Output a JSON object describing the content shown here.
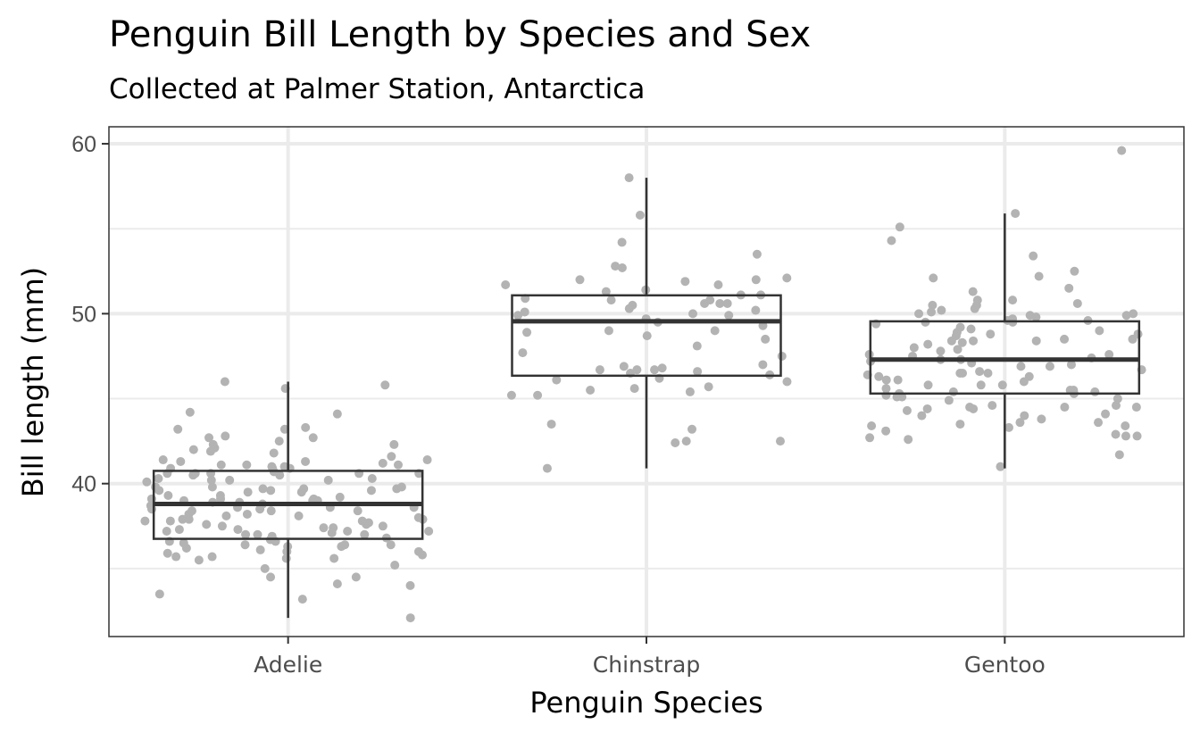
{
  "chart_data": {
    "type": "boxplot",
    "title": "Penguin Bill Length by Species and Sex",
    "subtitle": "Collected at Palmer Station, Antarctica",
    "xlabel": "Penguin Species",
    "ylabel": "Bill length (mm)",
    "ylim": [
      31,
      61
    ],
    "yticks": [
      40,
      50,
      60
    ],
    "ytick_labels": [
      "40",
      "50",
      "60"
    ],
    "grid": true,
    "categories": [
      "Adelie",
      "Chinstrap",
      "Gentoo"
    ],
    "boxes": [
      {
        "category": "Adelie",
        "min": 32.1,
        "q1": 36.75,
        "median": 38.8,
        "q3": 40.75,
        "max": 46.0
      },
      {
        "category": "Chinstrap",
        "min": 40.9,
        "q1": 46.35,
        "median": 49.55,
        "q3": 51.08,
        "max": 58.0
      },
      {
        "category": "Gentoo",
        "min": 40.9,
        "q1": 45.3,
        "median": 47.3,
        "q3": 49.55,
        "max": 55.9
      }
    ],
    "points": [
      {
        "category": "Adelie",
        "values": [
          45.6,
          43.3,
          43.2,
          42.1,
          41.0,
          40.9,
          40.6,
          39.7,
          39.1,
          38.8,
          38.1,
          37.7,
          37.4,
          37.2,
          36.3,
          35.7,
          34.1,
          44.2,
          41.3,
          41.0,
          40.6,
          39.6,
          38.6,
          37.9,
          37.3,
          36.9,
          36.0,
          35.5,
          35.0,
          33.2,
          44.1,
          42.8,
          42.0,
          41.4,
          40.9,
          40.2,
          39.5,
          38.9,
          38.2,
          37.6,
          37.0,
          36.4,
          35.9,
          34.0,
          42.3,
          41.1,
          40.5,
          39.8,
          39.0,
          38.5,
          37.8,
          37.1,
          36.5,
          42.7,
          41.8,
          40.9,
          40.3,
          39.7,
          39.2,
          38.6,
          38.0,
          37.3,
          36.7,
          36.0,
          34.5,
          45.8,
          40.7,
          39.6,
          39.3,
          38.9,
          38.4,
          37.9,
          37.5,
          37.0,
          36.4,
          35.8,
          32.1,
          41.6,
          40.6,
          40.2,
          39.7,
          39.1,
          38.6,
          38.2,
          37.6,
          37.0,
          36.3,
          34.5,
          41.1,
          40.6,
          40.1,
          39.5,
          39.0,
          38.4,
          37.8,
          37.2,
          36.6,
          35.2,
          42.7,
          42.5,
          41.3,
          40.3,
          39.8,
          39.1,
          38.5,
          37.9,
          37.2,
          36.4,
          35.6,
          42.3,
          41.9,
          41.2,
          40.5,
          39.8,
          39.3,
          38.7,
          38.1,
          37.5,
          36.8,
          36.2,
          35.6,
          33.5,
          46.0,
          43.2,
          41.4,
          41.1,
          40.6,
          40.2,
          39.6,
          39.0,
          38.4,
          37.8,
          37.4,
          36.6,
          36.1,
          35.7
        ]
      },
      {
        "category": "Chinstrap",
        "values": [
          55.8,
          54.2,
          51.7,
          50.6,
          50.5,
          49.0,
          46.7,
          46.4,
          45.7,
          42.5,
          52.0,
          51.3,
          50.9,
          50.2,
          48.9,
          47.7,
          46.1,
          45.5,
          45.2,
          42.4,
          58.0,
          50.8,
          49.5,
          47.0,
          46.7,
          46.9,
          45.2,
          51.1,
          50.0,
          49.7,
          49.3,
          46.6,
          45.6,
          42.5,
          53.5,
          52.7,
          51.4,
          50.6,
          49.9,
          48.5,
          46.2,
          52.1,
          51.9,
          51.1,
          50.3,
          50.1,
          47.5,
          46.8,
          45.4,
          52.8,
          51.7,
          50.6,
          48.7,
          46.5,
          52.0,
          50.8,
          49.9,
          49.0,
          46.7,
          46.0,
          43.2,
          40.9,
          48.1,
          43.5
        ]
      },
      {
        "category": "Gentoo",
        "values": [
          50.0,
          49.5,
          48.4,
          46.4,
          44.5,
          43.3,
          43.4,
          51.3,
          48.0,
          46.9,
          45.8,
          45.5,
          44.9,
          59.6,
          53.4,
          50.3,
          49.0,
          47.5,
          46.5,
          45.8,
          45.0,
          44.0,
          43.1,
          42.6,
          41.0,
          52.1,
          50.5,
          49.6,
          48.7,
          47.6,
          46.3,
          45.3,
          44.6,
          43.6,
          41.7,
          54.3,
          50.8,
          49.5,
          48.4,
          47.2,
          46.1,
          45.5,
          44.1,
          42.7,
          55.9,
          50.2,
          49.2,
          48.2,
          47.0,
          45.8,
          44.4,
          43.8,
          42.9,
          50.0,
          49.1,
          48.5,
          47.4,
          46.6,
          45.2,
          44.0,
          55.1,
          51.5,
          49.9,
          48.8,
          47.8,
          46.5,
          45.4,
          44.3,
          43.4,
          52.2,
          49.6,
          48.5,
          47.3,
          46.3,
          45.3,
          44.5,
          42.8,
          49.8,
          48.9,
          47.9,
          46.9,
          46.0,
          45.1,
          44.4,
          43.6,
          52.5,
          50.8,
          49.7,
          48.4,
          47.1,
          46.1,
          45.1,
          44.5,
          42.8,
          50.6,
          49.9,
          48.8,
          47.6,
          46.5,
          45.6,
          44.6,
          43.5,
          50.5,
          50.1,
          49.4,
          48.3,
          47.3,
          46.7,
          45.4
        ]
      }
    ]
  },
  "style": {
    "panel_border": "#333333",
    "grid_color": "#ebebeb",
    "box_color": "#333333",
    "point_color": "#b3b3b3",
    "background": "#ffffff"
  }
}
